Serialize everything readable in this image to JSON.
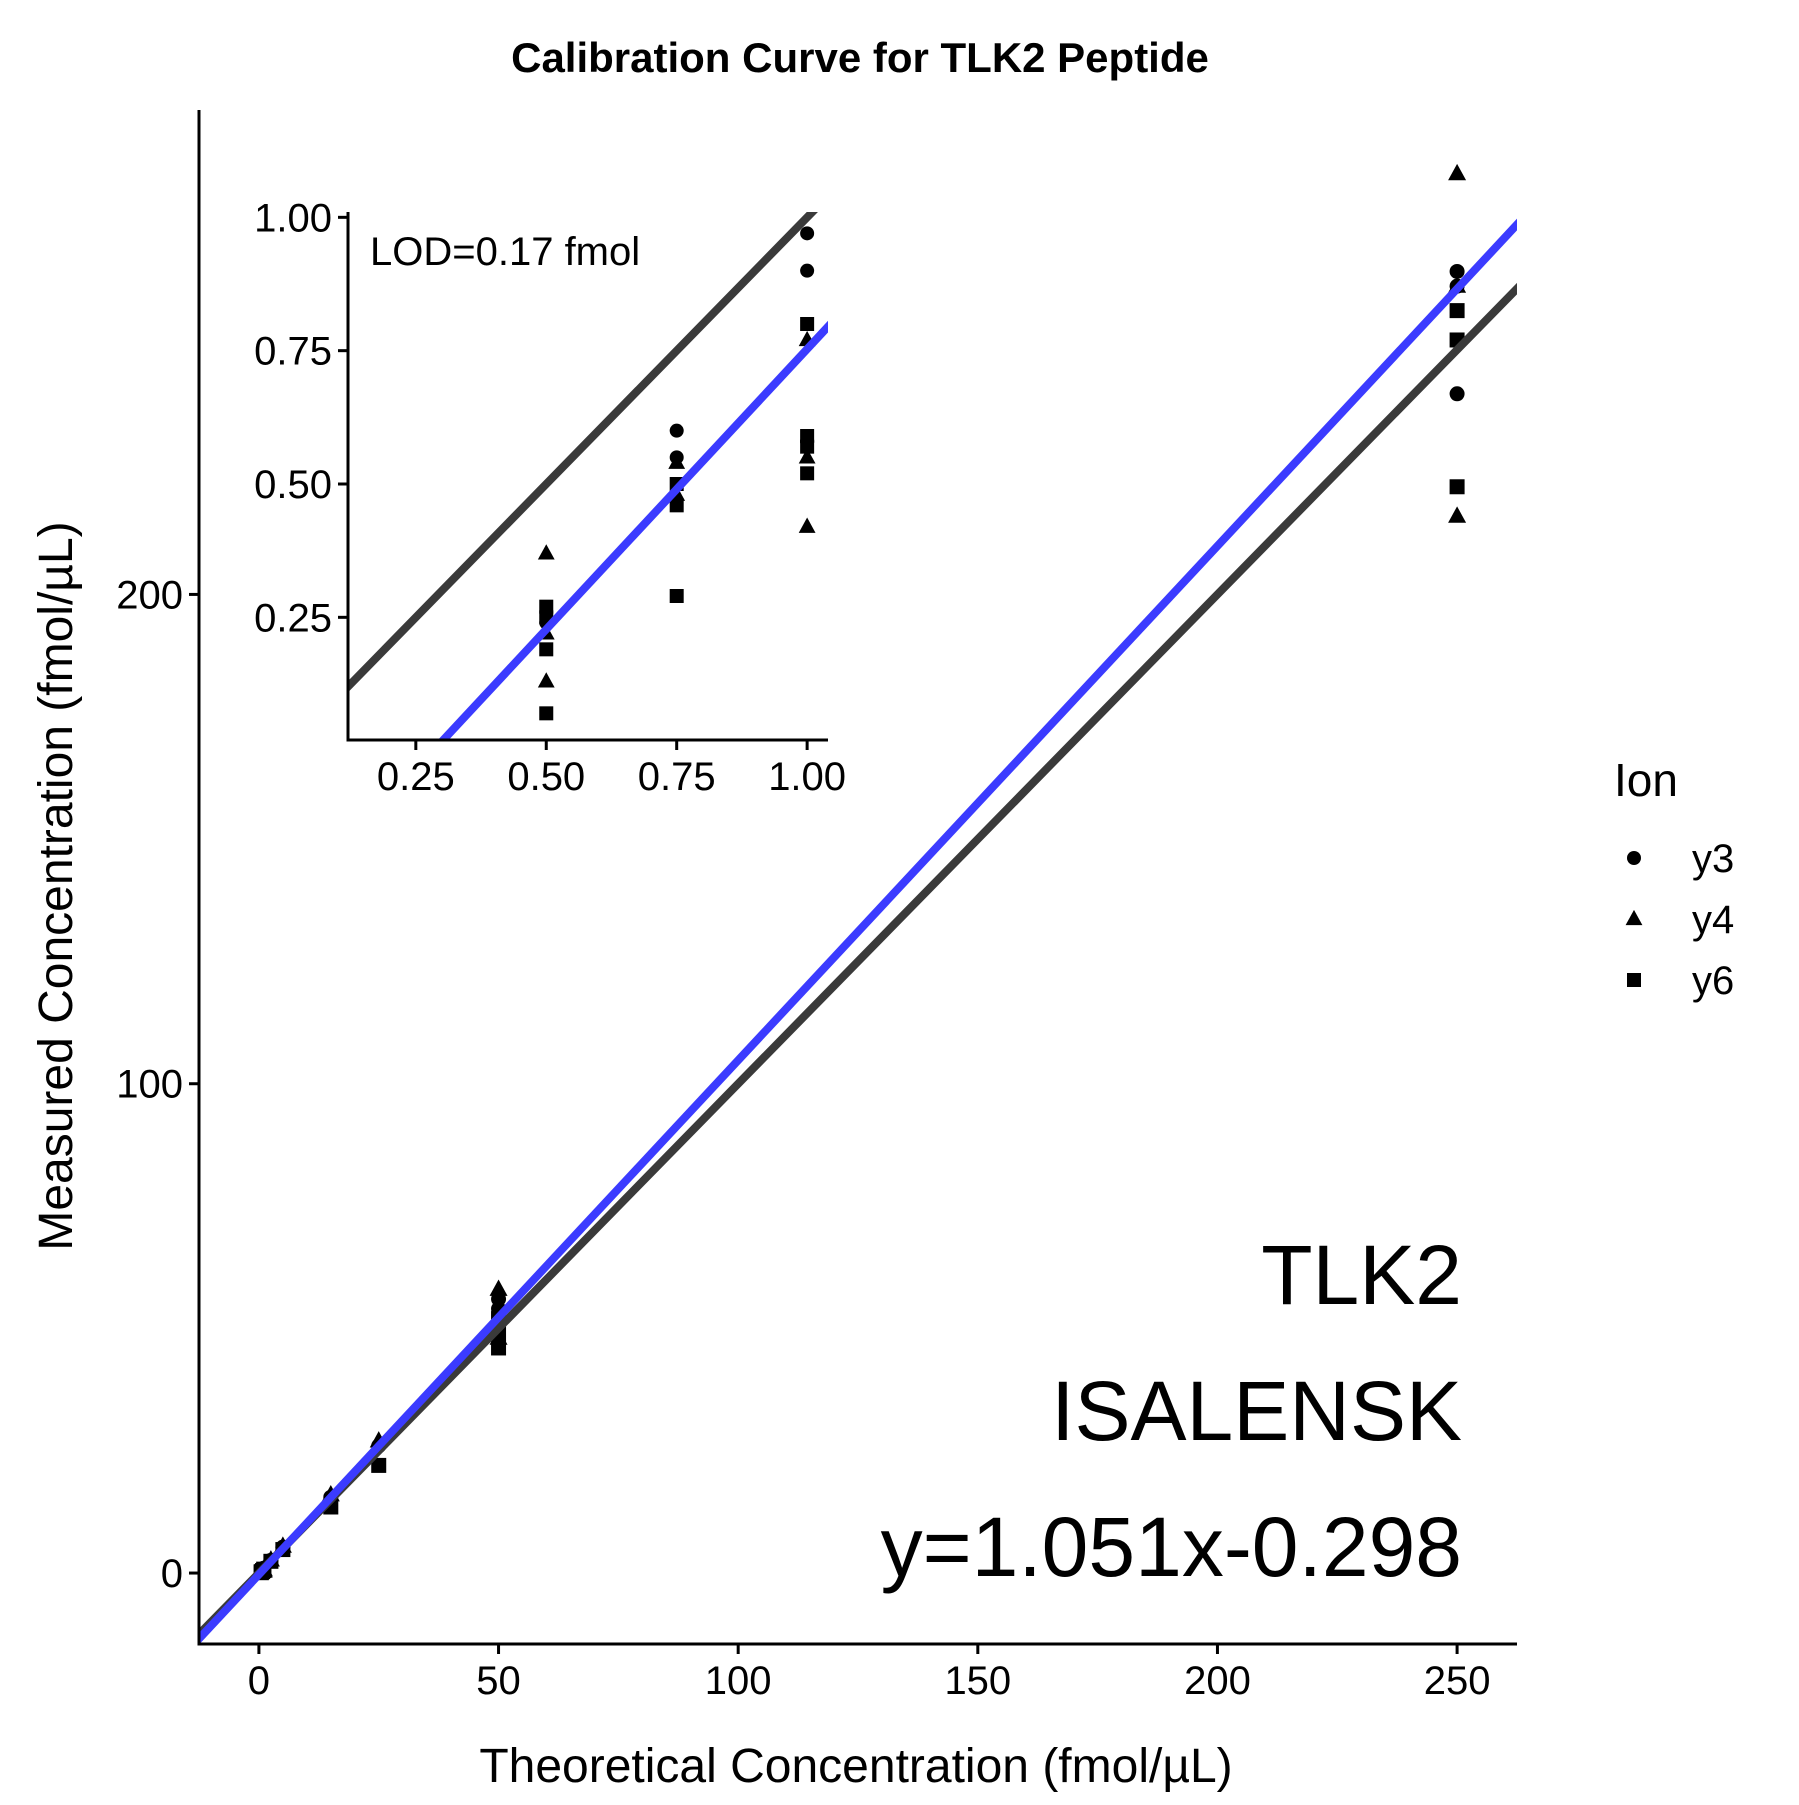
{
  "chart_data": {
    "type": "scatter",
    "title": "Calibration Curve for TLK2 Peptide",
    "xlabel": "Theoretical Concentration (fmol/µL)",
    "ylabel": "Measured Concentration (fmol/µL)",
    "xlim": [
      -12.5,
      262.5
    ],
    "ylim": [
      -14.5,
      299
    ],
    "xticks": [
      0,
      50,
      100,
      150,
      200,
      250
    ],
    "yticks": [
      0,
      100,
      200
    ],
    "legend": {
      "title": "Ion",
      "position": "right",
      "entries": [
        {
          "name": "y3",
          "shape": "circle"
        },
        {
          "name": "y4",
          "shape": "triangle"
        },
        {
          "name": "y6",
          "shape": "square"
        }
      ]
    },
    "annotations": [
      "TLK2",
      "ISALENSK",
      "y=1.051x-0.298"
    ],
    "lines": [
      {
        "label": "identity",
        "color": "#3a3a3a",
        "slope": 1.0,
        "intercept": 0.0
      },
      {
        "label": "fit",
        "color": "#3b3bff",
        "slope": 1.051,
        "intercept": -0.298
      }
    ],
    "series": [
      {
        "name": "y3",
        "shape": "circle",
        "x": [
          0.5,
          0.75,
          0.75,
          1,
          1,
          1,
          2.5,
          5,
          15,
          25,
          50,
          50,
          250,
          250,
          250
        ],
        "y": [
          0.24,
          0.6,
          0.55,
          0.97,
          0.9,
          0.58,
          2.6,
          5.3,
          15.5,
          26,
          56,
          54,
          266,
          263,
          241
        ]
      },
      {
        "name": "y4",
        "shape": "triangle",
        "x": [
          0.5,
          0.5,
          0.5,
          0.75,
          0.75,
          1,
          1,
          1,
          2.5,
          5,
          15,
          25,
          50,
          50,
          250,
          250,
          250
        ],
        "y": [
          0.37,
          0.13,
          0.22,
          0.54,
          0.48,
          0.77,
          0.55,
          0.42,
          2.7,
          5.5,
          16,
          27,
          58,
          48,
          286,
          216,
          263
        ]
      },
      {
        "name": "y6",
        "shape": "square",
        "x": [
          0.5,
          0.5,
          0.5,
          0.5,
          0.75,
          0.75,
          0.75,
          1,
          1,
          1,
          1,
          2.5,
          5,
          15,
          25,
          50,
          50,
          50,
          250,
          250,
          250
        ],
        "y": [
          0.27,
          0.25,
          0.19,
          0.07,
          0.46,
          0.5,
          0.29,
          0.8,
          0.59,
          0.57,
          0.52,
          2.4,
          4.8,
          13.5,
          22,
          46,
          49,
          52,
          258,
          252,
          222
        ]
      }
    ],
    "inset": {
      "xlim": [
        0.12,
        1.04
      ],
      "ylim": [
        0.02,
        1.01
      ],
      "xticks": [
        0.25,
        0.5,
        0.75,
        1.0
      ],
      "yticks": [
        0.25,
        0.5,
        0.75,
        1.0
      ],
      "xtick_labels": [
        "0.25",
        "0.50",
        "0.75",
        "1.00"
      ],
      "ytick_labels": [
        "0.25",
        "0.50",
        "0.75",
        "1.00"
      ],
      "annotation": "LOD=0.17 fmol"
    }
  }
}
